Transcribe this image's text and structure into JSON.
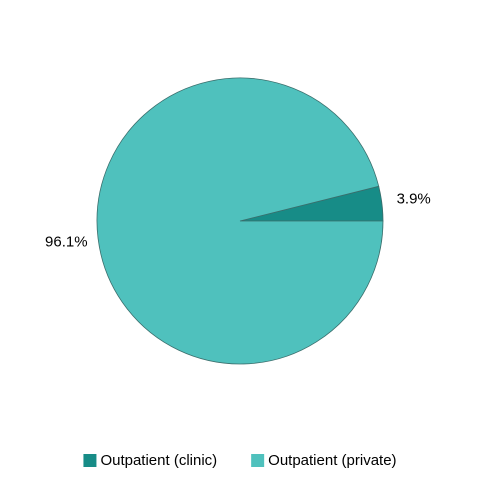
{
  "chart_data": {
    "type": "pie",
    "categories": [
      "Outpatient (clinic)",
      "Outpatient (private)"
    ],
    "values": [
      3.9,
      96.1
    ],
    "value_labels": [
      "3.9%",
      "96.1%"
    ],
    "colors": [
      "#178c87",
      "#4fc1bd"
    ],
    "legend": "bottom"
  }
}
